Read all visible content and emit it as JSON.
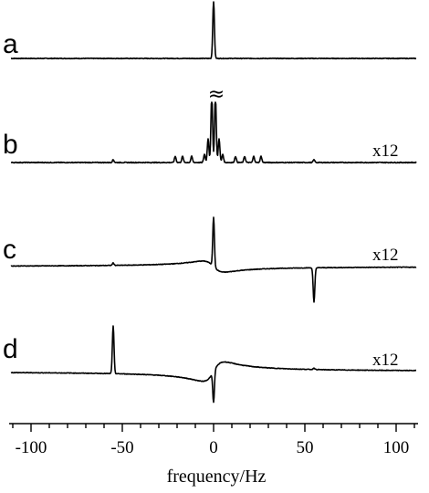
{
  "chart_data": {
    "type": "line",
    "title": "",
    "xlabel": "frequency/Hz",
    "ylabel": "",
    "xlim": [
      -112,
      112
    ],
    "x_major_ticks": [
      -100,
      -50,
      0,
      50,
      100
    ],
    "x_tick_labels": [
      "-100",
      "-50",
      "0",
      "50",
      "100"
    ],
    "x_minor_tick_step": 10,
    "grid": false,
    "panels": [
      {
        "label": "a",
        "scale": "",
        "peaks": [
          {
            "x": 0,
            "height": 1.0
          }
        ],
        "dispersive": []
      },
      {
        "label": "b",
        "scale": "x12",
        "break_mark": "≈",
        "peaks": [
          {
            "x": -1,
            "height": 1.0
          },
          {
            "x": 1,
            "height": 1.0
          },
          {
            "x": -3,
            "height": 0.35
          },
          {
            "x": 3,
            "height": 0.35
          },
          {
            "x": -5,
            "height": 0.12
          },
          {
            "x": 5,
            "height": 0.12
          },
          {
            "x": -12,
            "height": 0.09
          },
          {
            "x": -17,
            "height": 0.09
          },
          {
            "x": -21,
            "height": 0.09
          },
          {
            "x": 12,
            "height": 0.09
          },
          {
            "x": 17,
            "height": 0.09
          },
          {
            "x": 22,
            "height": 0.09
          },
          {
            "x": 26,
            "height": 0.09
          },
          {
            "x": -55,
            "height": 0.04
          },
          {
            "x": 55,
            "height": 0.04
          }
        ],
        "dispersive": []
      },
      {
        "label": "c",
        "scale": "x12",
        "peaks": [
          {
            "x": 0,
            "height": 1.0
          },
          {
            "x": 55,
            "height": -0.7
          },
          {
            "x": -55,
            "height": 0.05
          }
        ],
        "dispersive": [
          {
            "x": 0,
            "amplitude": 0.25
          }
        ]
      },
      {
        "label": "d",
        "scale": "x12",
        "peaks": [
          {
            "x": -55,
            "height": 1.0
          },
          {
            "x": 0,
            "height": -0.85
          },
          {
            "x": 0,
            "height": 0.2
          },
          {
            "x": 55,
            "height": 0.03
          }
        ],
        "dispersive": [
          {
            "x": 0,
            "amplitude": -0.45
          }
        ]
      }
    ]
  }
}
